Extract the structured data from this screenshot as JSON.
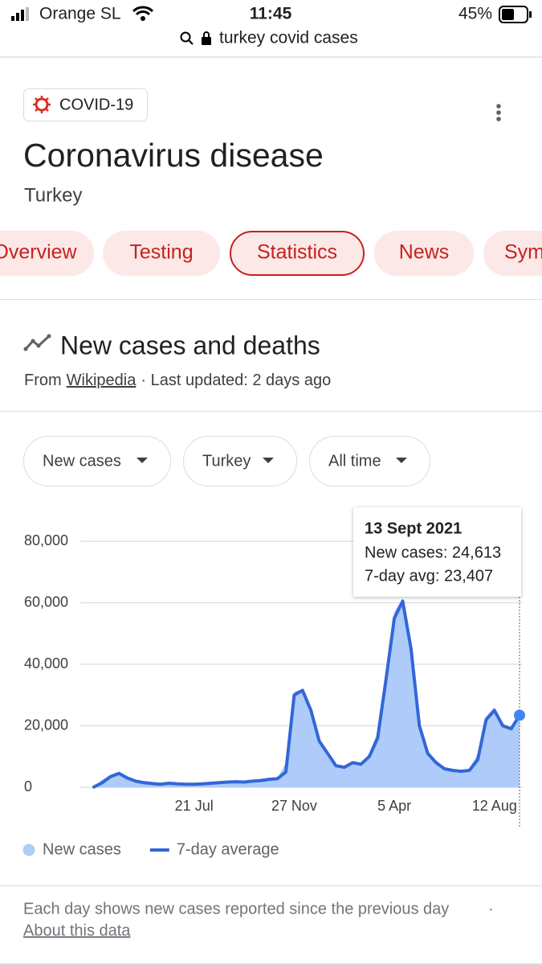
{
  "status_bar": {
    "carrier": "Orange SL",
    "time": "11:45",
    "battery": "45%"
  },
  "address_bar": {
    "query": "turkey covid cases"
  },
  "header": {
    "badge": "COVID-19",
    "title": "Coronavirus disease",
    "subtitle": "Turkey"
  },
  "tabs": [
    {
      "label": "Overview",
      "selected": false
    },
    {
      "label": "Testing",
      "selected": false
    },
    {
      "label": "Statistics",
      "selected": true
    },
    {
      "label": "News",
      "selected": false
    },
    {
      "label": "Symptoms",
      "selected": false
    }
  ],
  "section": {
    "title": "New cases and deaths",
    "source_prefix": "From",
    "source": "Wikipedia",
    "updated": "· Last updated: 2 days ago"
  },
  "filters": [
    "New cases",
    "Turkey",
    "All time"
  ],
  "chart_data": {
    "type": "line",
    "categories": [
      null,
      null,
      null,
      null,
      null,
      null,
      null,
      null,
      null,
      null,
      null,
      null,
      "21 Jul",
      null,
      null,
      null,
      null,
      null,
      null,
      null,
      null,
      null,
      null,
      null,
      "27 Nov",
      null,
      null,
      null,
      null,
      null,
      null,
      null,
      null,
      null,
      null,
      null,
      "5 Apr",
      null,
      null,
      null,
      null,
      null,
      null,
      null,
      null,
      null,
      null,
      null,
      "12 Aug",
      null,
      null,
      null
    ],
    "series": [
      {
        "name": "New cases",
        "color": "#aecbfa",
        "style": "area",
        "values": [
          300,
          2500,
          4000,
          4800,
          2800,
          1800,
          1400,
          1100,
          950,
          1400,
          1050,
          950,
          1050,
          1150,
          1250,
          1550,
          1650,
          1850,
          1650,
          2100,
          2300,
          2700,
          3000,
          8000,
          31000,
          32000,
          23000,
          14000,
          10500,
          6800,
          6700,
          8200,
          7400,
          11000,
          18000,
          38000,
          57000,
          61500,
          42000,
          18000,
          10500,
          7500,
          5800,
          5400,
          5100,
          6000,
          11000,
          23000,
          26000,
          19500,
          18500,
          24613
        ]
      },
      {
        "name": "7-day average",
        "color": "#3367d6",
        "style": "line",
        "values": [
          100,
          1500,
          3500,
          4500,
          3000,
          2000,
          1500,
          1200,
          1000,
          1300,
          1100,
          1000,
          1000,
          1100,
          1300,
          1500,
          1700,
          1800,
          1700,
          2000,
          2200,
          2600,
          2800,
          5000,
          30000,
          31500,
          25000,
          15000,
          11000,
          7000,
          6500,
          8000,
          7500,
          10000,
          16000,
          35000,
          55000,
          60500,
          45000,
          20000,
          11000,
          8000,
          6000,
          5500,
          5200,
          5500,
          9000,
          22000,
          25000,
          20000,
          19000,
          23407
        ]
      }
    ],
    "ylim": [
      0,
      80000
    ],
    "yticks": [
      0,
      {
        "value": 20000,
        "label": "20,000"
      },
      {
        "value": 40000,
        "label": "40,000"
      },
      {
        "value": 60000,
        "label": "60,000"
      },
      {
        "value": 80000,
        "label": "80,000"
      }
    ],
    "grid": true,
    "tooltip": {
      "title": "13 Sept 2021",
      "lines": [
        "New cases: 24,613",
        "7-day avg: 23,407"
      ]
    }
  },
  "footer": {
    "note": "Each day shows new cases reported since the previous day",
    "separator": "·",
    "link": "About this data"
  }
}
